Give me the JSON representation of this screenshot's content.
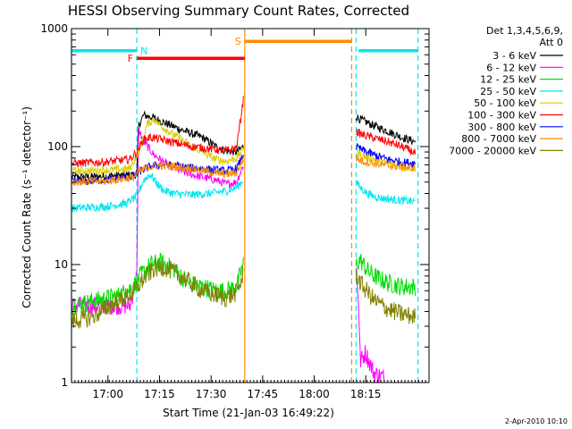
{
  "chart_data": {
    "type": "line",
    "title": "HESSI Observing Summary Count Rates, Corrected",
    "xlabel": "Start Time (21-Jan-03 16:49:22)",
    "ylabel": "Corrected Count Rate (s⁻¹ detector⁻¹)",
    "timestamp": "2-Apr-2010 10:10",
    "legend_header": [
      "Det 1,3,4,5,6,9,",
      "Att 0"
    ],
    "x_range_minutes": [
      0,
      104
    ],
    "y_scale": "log",
    "ylim": [
      1,
      1000
    ],
    "x_ticks": [
      {
        "label": "17:00",
        "value": 10.6
      },
      {
        "label": "17:15",
        "value": 25.6
      },
      {
        "label": "17:30",
        "value": 40.6
      },
      {
        "label": "17:45",
        "value": 55.6
      },
      {
        "label": "18:00",
        "value": 70.6
      },
      {
        "label": "18:15",
        "value": 85.6
      }
    ],
    "y_ticks": [
      {
        "label": "1000",
        "value": 1000
      },
      {
        "label": "100",
        "value": 100
      },
      {
        "label": "10",
        "value": 10
      },
      {
        "label": "1",
        "value": 1
      }
    ],
    "flags": [
      {
        "label": "N",
        "color": "#00e5ee",
        "segments": [
          [
            0,
            19
          ],
          [
            83.5,
            100.8
          ]
        ],
        "level": 650
      },
      {
        "label": "F",
        "color": "#ff0000",
        "segments": [
          [
            19,
            50.4
          ]
        ],
        "level": 560
      },
      {
        "label": "S",
        "color": "#ff8c00",
        "segments": [
          [
            50.4,
            81.5
          ]
        ],
        "level": 780
      }
    ],
    "boundaries": [
      {
        "x": 0,
        "color": "#00e5ee",
        "style": "solid"
      },
      {
        "x": 19,
        "color": "#00e5ee",
        "style": "dashed"
      },
      {
        "x": 50.4,
        "color": "#ff8c00",
        "style": "solid"
      },
      {
        "x": 81.5,
        "color": "#ff8c00",
        "style": "dashed"
      },
      {
        "x": 82.8,
        "color": "#00e5ee",
        "style": "dashed"
      },
      {
        "x": 100.8,
        "color": "#00e5ee",
        "style": "dashed"
      }
    ],
    "series": [
      {
        "name": "3 - 6 keV",
        "color": "#000000",
        "segments": [
          [
            [
              0,
              55
            ],
            [
              10,
              56
            ],
            [
              19,
              58
            ],
            [
              19.5,
              150
            ],
            [
              21,
              185
            ],
            [
              24,
              175
            ],
            [
              28,
              155
            ],
            [
              33,
              135
            ],
            [
              38,
              120
            ],
            [
              42,
              100
            ],
            [
              45,
              92
            ],
            [
              48,
              90
            ],
            [
              50,
              100
            ]
          ],
          [
            [
              82.8,
              180
            ],
            [
              84,
              170
            ],
            [
              88,
              150
            ],
            [
              92,
              135
            ],
            [
              96,
              120
            ],
            [
              100,
              110
            ]
          ]
        ]
      },
      {
        "name": "6 - 12 keV",
        "color": "#ff00ff",
        "segments": [
          [
            [
              0,
              4.5
            ],
            [
              17,
              4.5
            ],
            [
              18,
              6
            ],
            [
              19,
              8
            ],
            [
              19.5,
              140
            ],
            [
              21,
              110
            ],
            [
              24,
              85
            ],
            [
              28,
              70
            ],
            [
              33,
              60
            ],
            [
              38,
              55
            ],
            [
              42,
              52
            ],
            [
              45,
              48
            ],
            [
              48,
              50
            ],
            [
              50,
              70
            ]
          ],
          [
            [
              82.8,
              9
            ],
            [
              83.5,
              5
            ],
            [
              84,
              1.5
            ],
            [
              85.5,
              1.8
            ],
            [
              88,
              1.2
            ],
            [
              91,
              1.1
            ]
          ]
        ]
      },
      {
        "name": "12 - 25 keV",
        "color": "#00dd00",
        "segments": [
          [
            [
              0,
              4.5
            ],
            [
              8,
              5
            ],
            [
              14,
              5.5
            ],
            [
              18,
              6.5
            ],
            [
              20,
              8
            ],
            [
              23,
              10
            ],
            [
              26,
              10.5
            ],
            [
              30,
              9
            ],
            [
              34,
              7
            ],
            [
              38,
              6.5
            ],
            [
              42,
              6
            ],
            [
              45,
              6
            ],
            [
              48,
              6.5
            ],
            [
              50,
              10
            ]
          ],
          [
            [
              82.8,
              10
            ],
            [
              84,
              11
            ],
            [
              86,
              9
            ],
            [
              88,
              8
            ],
            [
              92,
              7
            ],
            [
              96,
              6.5
            ],
            [
              100,
              6.5
            ]
          ]
        ]
      },
      {
        "name": "25 - 50 keV",
        "color": "#00e5ee",
        "segments": [
          [
            [
              0,
              30
            ],
            [
              10,
              31
            ],
            [
              16,
              33
            ],
            [
              19,
              38
            ],
            [
              21,
              52
            ],
            [
              23,
              58
            ],
            [
              25,
              48
            ],
            [
              27,
              42
            ],
            [
              30,
              40
            ],
            [
              35,
              39
            ],
            [
              40,
              40
            ],
            [
              45,
              42
            ],
            [
              48,
              45
            ],
            [
              50,
              52
            ]
          ],
          [
            [
              82.8,
              50
            ],
            [
              84,
              45
            ],
            [
              86,
              40
            ],
            [
              89,
              37
            ],
            [
              92,
              36
            ],
            [
              96,
              35
            ],
            [
              100,
              34
            ]
          ]
        ]
      },
      {
        "name": "50 - 100 keV",
        "color": "#ddcc00",
        "segments": [
          [
            [
              0,
              62
            ],
            [
              10,
              63
            ],
            [
              17,
              65
            ],
            [
              20,
              95
            ],
            [
              22,
              155
            ],
            [
              24,
              170
            ],
            [
              26,
              150
            ],
            [
              30,
              125
            ],
            [
              34,
              105
            ],
            [
              38,
              90
            ],
            [
              42,
              78
            ],
            [
              45,
              75
            ],
            [
              48,
              80
            ],
            [
              50,
              95
            ]
          ],
          [
            [
              82.8,
              90
            ],
            [
              84,
              85
            ],
            [
              88,
              78
            ],
            [
              92,
              72
            ],
            [
              96,
              68
            ],
            [
              100,
              66
            ]
          ]
        ]
      },
      {
        "name": "100 - 300 keV",
        "color": "#ff0000",
        "segments": [
          [
            [
              0,
              72
            ],
            [
              10,
              74
            ],
            [
              17,
              78
            ],
            [
              19,
              90
            ],
            [
              21,
              115
            ],
            [
              23,
              120
            ],
            [
              26,
              115
            ],
            [
              30,
              108
            ],
            [
              35,
              100
            ],
            [
              40,
              96
            ],
            [
              45,
              92
            ],
            [
              48,
              98
            ],
            [
              50,
              250
            ]
          ],
          [
            [
              82.8,
              135
            ],
            [
              84,
              128
            ],
            [
              88,
              118
            ],
            [
              92,
              110
            ],
            [
              96,
              100
            ],
            [
              100,
              88
            ]
          ]
        ]
      },
      {
        "name": "300 - 800 keV",
        "color": "#0000ff",
        "segments": [
          [
            [
              0,
              50
            ],
            [
              10,
              52
            ],
            [
              18,
              56
            ],
            [
              20,
              62
            ],
            [
              23,
              68
            ],
            [
              26,
              70
            ],
            [
              30,
              69
            ],
            [
              35,
              66
            ],
            [
              40,
              64
            ],
            [
              45,
              62
            ],
            [
              48,
              65
            ],
            [
              50,
              85
            ]
          ],
          [
            [
              82.8,
              100
            ],
            [
              84,
              95
            ],
            [
              88,
              85
            ],
            [
              92,
              78
            ],
            [
              96,
              74
            ],
            [
              100,
              72
            ]
          ]
        ]
      },
      {
        "name": "800 - 7000 keV",
        "color": "#ff8c00",
        "segments": [
          [
            [
              0,
              50
            ],
            [
              10,
              51
            ],
            [
              18,
              55
            ],
            [
              20,
              62
            ],
            [
              23,
              68
            ],
            [
              26,
              69
            ],
            [
              30,
              68
            ],
            [
              35,
              65
            ],
            [
              40,
              61
            ],
            [
              45,
              58
            ],
            [
              48,
              60
            ],
            [
              50,
              78
            ]
          ],
          [
            [
              82.8,
              80
            ],
            [
              84,
              76
            ],
            [
              88,
              72
            ],
            [
              92,
              69
            ],
            [
              96,
              67
            ],
            [
              100,
              66
            ]
          ]
        ]
      },
      {
        "name": "7000 - 20000 keV",
        "color": "#808000",
        "segments": [
          [
            [
              0,
              3.3
            ],
            [
              6,
              3.6
            ],
            [
              12,
              4.6
            ],
            [
              18,
              5.8
            ],
            [
              21,
              7.6
            ],
            [
              24,
              9.2
            ],
            [
              27,
              9.5
            ],
            [
              30,
              8.6
            ],
            [
              34,
              7.2
            ],
            [
              38,
              6
            ],
            [
              42,
              5.5
            ],
            [
              45,
              5.2
            ],
            [
              48,
              5.8
            ],
            [
              50,
              8
            ]
          ],
          [
            [
              82.8,
              8.5
            ],
            [
              84,
              7
            ],
            [
              88,
              5
            ],
            [
              92,
              4.2
            ],
            [
              96,
              3.8
            ],
            [
              100,
              3.6
            ]
          ]
        ]
      }
    ]
  }
}
